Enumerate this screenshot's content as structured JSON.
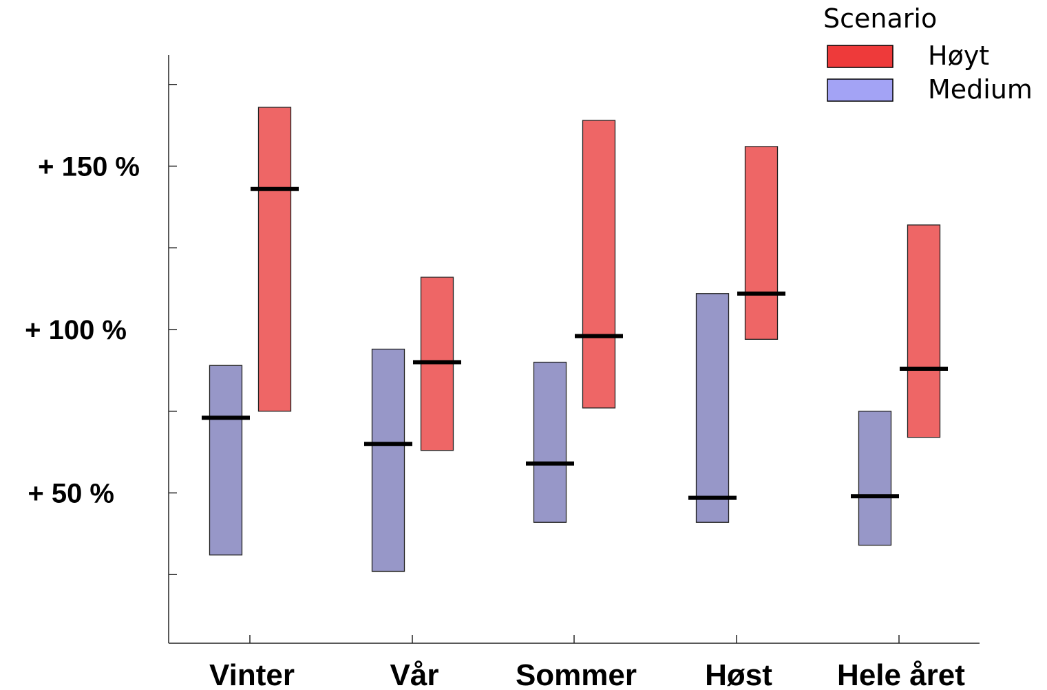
{
  "chart_data": {
    "type": "bar",
    "subtype": "floating-range-with-median",
    "categories": [
      "Vinter",
      "Vår",
      "Sommer",
      "Høst",
      "Hele året"
    ],
    "yaxis": {
      "range": [
        4,
        184
      ],
      "ticks": [
        {
          "value": 50,
          "label": "+ 50 %"
        },
        {
          "value": 100,
          "label": "+ 100 %"
        },
        {
          "value": 150,
          "label": "+ 150 %"
        }
      ],
      "minor_ticks": [
        25,
        75,
        125,
        175
      ]
    },
    "legend": {
      "title": "Scenario",
      "placement": "top-right",
      "entries": [
        {
          "label": "Høyt",
          "color": "#ee3a3a"
        },
        {
          "label": "Medium",
          "color": "#a3a3f5"
        }
      ]
    },
    "series": [
      {
        "name": "Medium",
        "fill": "#9797c8",
        "low": [
          31,
          26,
          41,
          41,
          34
        ],
        "median": [
          73,
          65,
          59,
          48.5,
          49
        ],
        "high": [
          89,
          94,
          90,
          111,
          75
        ]
      },
      {
        "name": "Høyt",
        "fill": "#ee6666",
        "low": [
          75,
          63,
          76,
          97,
          67
        ],
        "median": [
          143,
          90,
          98,
          111,
          88
        ],
        "high": [
          168,
          116,
          164,
          156,
          132
        ]
      }
    ]
  }
}
